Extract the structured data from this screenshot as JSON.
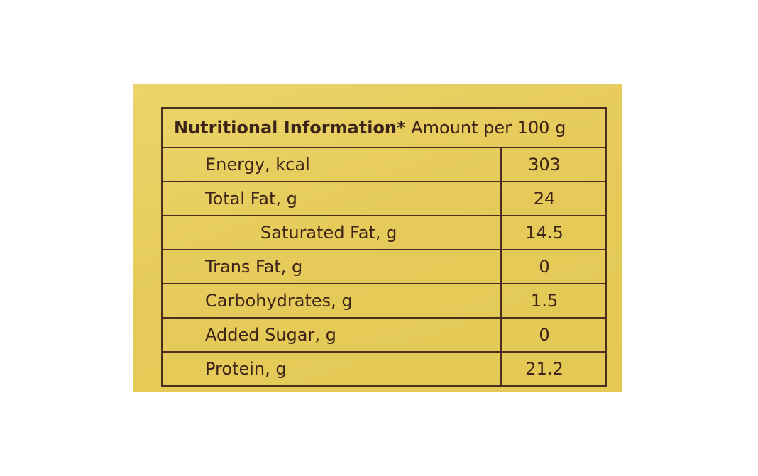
{
  "table": {
    "header": {
      "bold": "Nutritional Information*",
      "rest": " Amount per 100 g"
    },
    "rows": [
      {
        "name": "Energy, kcal",
        "value": "303"
      },
      {
        "name": "Total Fat, g",
        "value": "24"
      },
      {
        "name": "Saturated Fat, g",
        "value": "14.5"
      },
      {
        "name": "Trans Fat, g",
        "value": "0"
      },
      {
        "name": "Carbohydrates, g",
        "value": "1.5"
      },
      {
        "name": "Added Sugar, g",
        "value": "0"
      },
      {
        "name": "Protein, g",
        "value": "21.2"
      }
    ]
  },
  "colors": {
    "label_background": "#e6cb5a",
    "ink": "#3d2418",
    "border": "#4a2e22"
  }
}
